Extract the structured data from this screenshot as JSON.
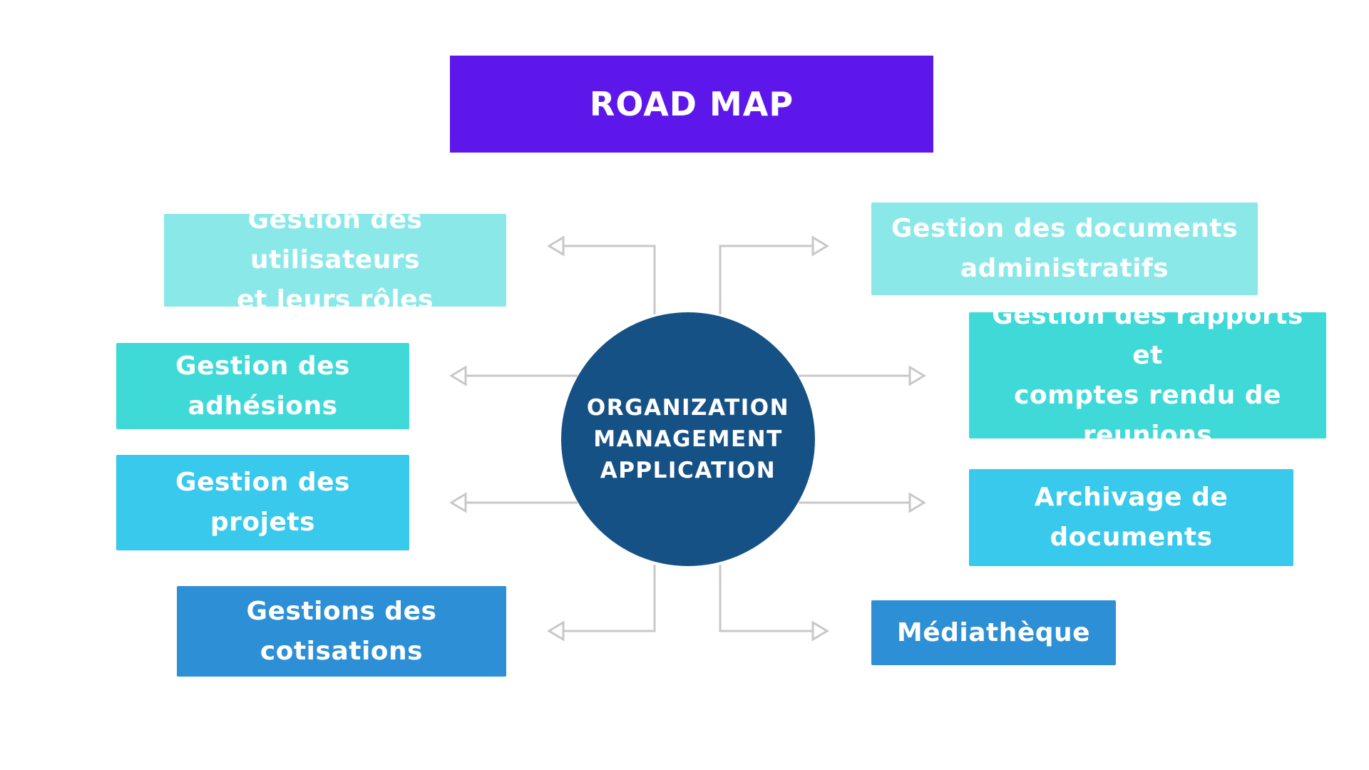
{
  "title": "ROAD MAP",
  "center": {
    "lines": [
      "ORGANIZATION",
      "MANAGEMENT",
      "APPLICATION"
    ]
  },
  "left_nodes": [
    {
      "id": "utilisateurs",
      "lines": [
        "Gestion des utilisateurs",
        "et leurs rôles"
      ],
      "color": "#8ae8e8"
    },
    {
      "id": "adhesions",
      "lines": [
        "Gestion des",
        "adhésions"
      ],
      "color": "#3fdad8"
    },
    {
      "id": "projets",
      "lines": [
        "Gestion des",
        "projets"
      ],
      "color": "#38c9ec"
    },
    {
      "id": "cotisations",
      "lines": [
        "Gestions des",
        "cotisations"
      ],
      "color": "#2d8fd5"
    }
  ],
  "right_nodes": [
    {
      "id": "documents",
      "lines": [
        "Gestion des documents",
        "administratifs"
      ],
      "color": "#8ae8e8"
    },
    {
      "id": "rapports",
      "lines": [
        "Gestion des rapports et",
        "comptes rendu de",
        "reunions"
      ],
      "color": "#3fdad8"
    },
    {
      "id": "archivage",
      "lines": [
        "Archivage de",
        "documents"
      ],
      "color": "#38c9ec"
    },
    {
      "id": "mediatheque",
      "lines": [
        "Médiathèque"
      ],
      "color": "#2d8fd5"
    }
  ],
  "colors": {
    "title_bg": "#5e17eb",
    "center_bg": "#165186",
    "connector": "#c8c8c8"
  }
}
